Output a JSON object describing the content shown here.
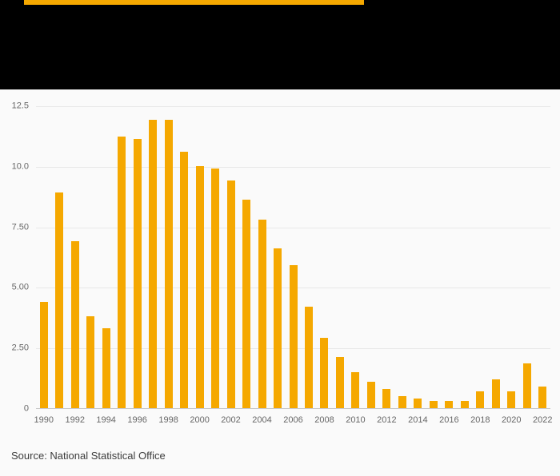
{
  "header": {
    "accent_color": "#f5a800",
    "background_color": "#000000"
  },
  "chart_data": {
    "type": "bar",
    "title": "",
    "xlabel": "",
    "ylabel": "",
    "categories": [
      "1990",
      "1991",
      "1992",
      "1993",
      "1994",
      "1995",
      "1996",
      "1997",
      "1998",
      "1999",
      "2000",
      "2001",
      "2002",
      "2003",
      "2004",
      "2005",
      "2006",
      "2007",
      "2008",
      "2009",
      "2010",
      "2011",
      "2012",
      "2013",
      "2014",
      "2015",
      "2016",
      "2017",
      "2018",
      "2019",
      "2020",
      "2021",
      "2022"
    ],
    "values": [
      4.4,
      8.9,
      6.9,
      3.8,
      3.3,
      11.2,
      11.1,
      11.9,
      11.9,
      10.6,
      10.0,
      9.9,
      9.4,
      8.6,
      7.8,
      6.6,
      5.9,
      4.2,
      2.9,
      2.1,
      1.5,
      1.1,
      0.8,
      0.5,
      0.4,
      0.3,
      0.3,
      0.3,
      0.7,
      1.2,
      0.7,
      1.85,
      0.9
    ],
    "ylim": [
      0,
      12.5
    ],
    "yticks": [
      {
        "value": 0,
        "label": "0"
      },
      {
        "value": 2.5,
        "label": "2.50"
      },
      {
        "value": 5,
        "label": "5.00"
      },
      {
        "value": 7.5,
        "label": "7.50"
      },
      {
        "value": 10,
        "label": "10.0"
      },
      {
        "value": 12.5,
        "label": "12.5"
      }
    ],
    "xtick_labels": [
      "1990",
      "1992",
      "1994",
      "1996",
      "1998",
      "2000",
      "2002",
      "2004",
      "2006",
      "2008",
      "2010",
      "2012",
      "2014",
      "2016",
      "2018",
      "2020",
      "2022"
    ],
    "bar_color": "#f5a800",
    "grid": true,
    "legend": false,
    "background_color": "#fafafa"
  },
  "footer": {
    "source_label": "Source: National Statistical Office"
  }
}
